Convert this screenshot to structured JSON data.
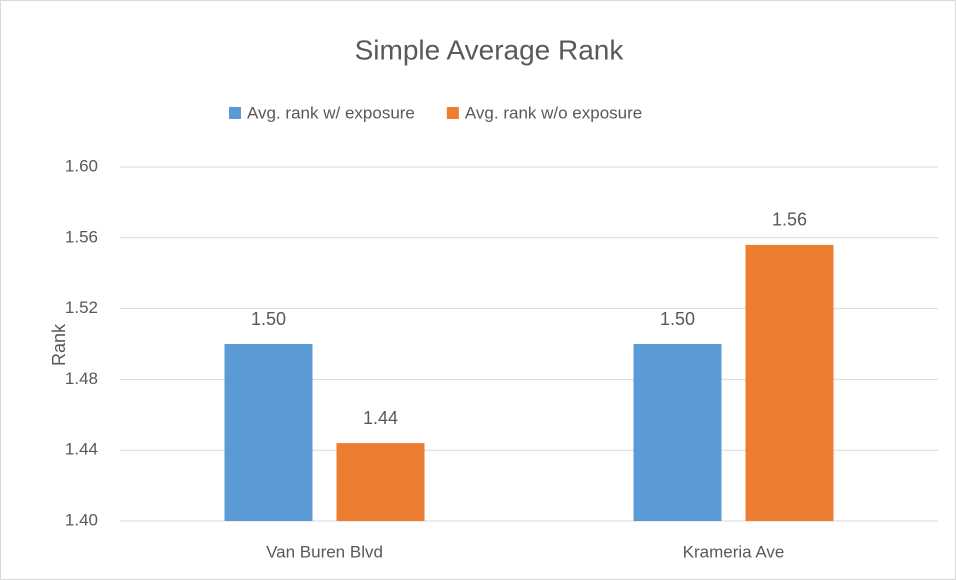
{
  "chart_data": {
    "type": "bar",
    "title": "Simple Average Rank",
    "y_label": "Rank",
    "categories": [
      "Van Buren Blvd",
      "Krameria Ave"
    ],
    "series": [
      {
        "name": "Avg. rank w/ exposure",
        "color": "#5b9bd5",
        "values": [
          1.5,
          1.5
        ],
        "value_labels": [
          "1.50",
          "1.50"
        ]
      },
      {
        "name": "Avg. rank w/o exposure",
        "color": "#ed7d31",
        "values": [
          1.444,
          1.556
        ],
        "value_labels": [
          "1.44",
          "1.56"
        ]
      }
    ],
    "ylim": [
      1.4,
      1.6
    ],
    "yticks": [
      {
        "value": 1.4,
        "label": "1.40"
      },
      1.44,
      1.48,
      1.52,
      1.56,
      {
        "value": 1.6,
        "label": "1.60"
      }
    ],
    "grid": true,
    "legend": "top"
  }
}
